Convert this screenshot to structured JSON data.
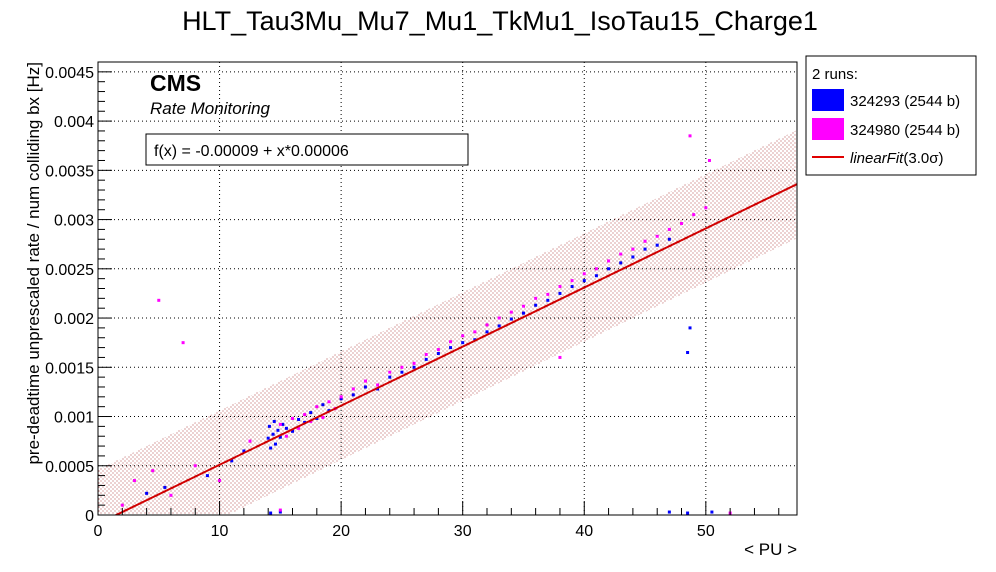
{
  "chart_data": {
    "type": "scatter",
    "title": "HLT_Tau3Mu_Mu7_Mu1_TkMu1_IsoTau15_Charge1",
    "xlabel": "< PU >",
    "ylabel": "pre-deadtime unprescaled rate / num colliding bx [Hz]",
    "xlim": [
      0,
      57.5
    ],
    "ylim": [
      0,
      0.0046
    ],
    "x_ticks": [
      0,
      10,
      20,
      30,
      40,
      50
    ],
    "x_tick_labels": [
      "0",
      "10",
      "20",
      "30",
      "40",
      "50"
    ],
    "y_ticks": [
      0,
      0.0005,
      0.001,
      0.0015,
      0.002,
      0.0025,
      0.003,
      0.0035,
      0.004,
      0.0045
    ],
    "y_tick_labels": [
      "0",
      "0.0005",
      "0.001",
      "0.0015",
      "0.002",
      "0.0025",
      "0.003",
      "0.0035",
      "0.004",
      "0.0045"
    ],
    "grid": true,
    "annotations": {
      "experiment": "CMS",
      "subtitle": "Rate Monitoring",
      "fit_formula": "f(x) = -0.00009 + x*0.00006"
    },
    "legend": {
      "header": "2 runs:",
      "position": "outside-right",
      "entries": [
        {
          "label": "324293 (2544 b)",
          "color": "#0000ff"
        },
        {
          "label": "324980 (2544 b)",
          "color": "#ff00ff"
        },
        {
          "label": "linearFit",
          "label_suffix": "(3.0σ)",
          "color": "#e00000"
        }
      ]
    },
    "fit": {
      "intercept": -9e-05,
      "slope": 6e-05,
      "band_halfwidth": 0.00055,
      "color": "#d00000"
    },
    "series": [
      {
        "name": "324293 (2544 b)",
        "color": "#0000ff",
        "points": [
          {
            "x": 14.0,
            "y": 0.00078
          },
          {
            "x": 14.1,
            "y": 0.0009
          },
          {
            "x": 14.2,
            "y": 0.00068
          },
          {
            "x": 14.4,
            "y": 0.00082
          },
          {
            "x": 14.5,
            "y": 0.00095
          },
          {
            "x": 14.6,
            "y": 0.00072
          },
          {
            "x": 14.8,
            "y": 0.00086
          },
          {
            "x": 15.0,
            "y": 0.00079
          },
          {
            "x": 15.2,
            "y": 0.00092
          },
          {
            "x": 15.5,
            "y": 0.00088
          },
          {
            "x": 16.0,
            "y": 0.00085
          },
          {
            "x": 16.5,
            "y": 0.00097
          },
          {
            "x": 17.0,
            "y": 0.00094
          },
          {
            "x": 17.5,
            "y": 0.00104
          },
          {
            "x": 18.0,
            "y": 0.00098
          },
          {
            "x": 18.5,
            "y": 0.00112
          },
          {
            "x": 19.0,
            "y": 0.00106
          },
          {
            "x": 20.0,
            "y": 0.00118
          },
          {
            "x": 21.0,
            "y": 0.00122
          },
          {
            "x": 22.0,
            "y": 0.0013
          },
          {
            "x": 23.0,
            "y": 0.00128
          },
          {
            "x": 24.0,
            "y": 0.0014
          },
          {
            "x": 25.0,
            "y": 0.00145
          },
          {
            "x": 26.0,
            "y": 0.0015
          },
          {
            "x": 27.0,
            "y": 0.00158
          },
          {
            "x": 28.0,
            "y": 0.00164
          },
          {
            "x": 29.0,
            "y": 0.0017
          },
          {
            "x": 30.0,
            "y": 0.00175
          },
          {
            "x": 31.0,
            "y": 0.00178
          },
          {
            "x": 32.0,
            "y": 0.00186
          },
          {
            "x": 33.0,
            "y": 0.00192
          },
          {
            "x": 34.0,
            "y": 0.00199
          },
          {
            "x": 35.0,
            "y": 0.00205
          },
          {
            "x": 36.0,
            "y": 0.00213
          },
          {
            "x": 37.0,
            "y": 0.00218
          },
          {
            "x": 38.0,
            "y": 0.00225
          },
          {
            "x": 39.0,
            "y": 0.00232
          },
          {
            "x": 40.0,
            "y": 0.00238
          },
          {
            "x": 41.0,
            "y": 0.00243
          },
          {
            "x": 42.0,
            "y": 0.0025
          },
          {
            "x": 43.0,
            "y": 0.00256
          },
          {
            "x": 44.0,
            "y": 0.00262
          },
          {
            "x": 45.0,
            "y": 0.0027
          },
          {
            "x": 46.0,
            "y": 0.00274
          },
          {
            "x": 47.0,
            "y": 0.0028
          },
          {
            "x": 14.2,
            "y": 2e-05
          },
          {
            "x": 15.0,
            "y": 3e-05
          },
          {
            "x": 47.0,
            "y": 3e-05
          },
          {
            "x": 48.5,
            "y": 2e-05
          },
          {
            "x": 50.5,
            "y": 3e-05
          },
          {
            "x": 48.5,
            "y": 0.00165
          },
          {
            "x": 48.7,
            "y": 0.0019
          },
          {
            "x": 4.0,
            "y": 0.00022
          },
          {
            "x": 5.5,
            "y": 0.00028
          },
          {
            "x": 9.0,
            "y": 0.0004
          },
          {
            "x": 11.0,
            "y": 0.00055
          },
          {
            "x": 12.0,
            "y": 0.00065
          }
        ]
      },
      {
        "name": "324980 (2544 b)",
        "color": "#ff00ff",
        "points": [
          {
            "x": 15.0,
            "y": 0.00092
          },
          {
            "x": 15.5,
            "y": 0.0008
          },
          {
            "x": 16.0,
            "y": 0.00098
          },
          {
            "x": 16.5,
            "y": 0.00088
          },
          {
            "x": 17.0,
            "y": 0.00102
          },
          {
            "x": 17.5,
            "y": 0.00095
          },
          {
            "x": 18.0,
            "y": 0.0011
          },
          {
            "x": 18.5,
            "y": 0.00099
          },
          {
            "x": 19.0,
            "y": 0.00115
          },
          {
            "x": 19.5,
            "y": 0.00108
          },
          {
            "x": 20.0,
            "y": 0.0012
          },
          {
            "x": 21.0,
            "y": 0.00128
          },
          {
            "x": 22.0,
            "y": 0.00136
          },
          {
            "x": 23.0,
            "y": 0.00132
          },
          {
            "x": 24.0,
            "y": 0.00145
          },
          {
            "x": 25.0,
            "y": 0.0015
          },
          {
            "x": 26.0,
            "y": 0.00154
          },
          {
            "x": 27.0,
            "y": 0.00163
          },
          {
            "x": 28.0,
            "y": 0.00168
          },
          {
            "x": 29.0,
            "y": 0.00176
          },
          {
            "x": 30.0,
            "y": 0.00182
          },
          {
            "x": 31.0,
            "y": 0.00186
          },
          {
            "x": 32.0,
            "y": 0.00193
          },
          {
            "x": 33.0,
            "y": 0.002
          },
          {
            "x": 34.0,
            "y": 0.00206
          },
          {
            "x": 35.0,
            "y": 0.00212
          },
          {
            "x": 36.0,
            "y": 0.0022
          },
          {
            "x": 37.0,
            "y": 0.00224
          },
          {
            "x": 38.0,
            "y": 0.00232
          },
          {
            "x": 39.0,
            "y": 0.00238
          },
          {
            "x": 40.0,
            "y": 0.00245
          },
          {
            "x": 41.0,
            "y": 0.0025
          },
          {
            "x": 42.0,
            "y": 0.00258
          },
          {
            "x": 43.0,
            "y": 0.00265
          },
          {
            "x": 44.0,
            "y": 0.0027
          },
          {
            "x": 45.0,
            "y": 0.00278
          },
          {
            "x": 46.0,
            "y": 0.00283
          },
          {
            "x": 47.0,
            "y": 0.0029
          },
          {
            "x": 48.0,
            "y": 0.00296
          },
          {
            "x": 49.0,
            "y": 0.00305
          },
          {
            "x": 50.0,
            "y": 0.00312
          },
          {
            "x": 48.7,
            "y": 0.00385
          },
          {
            "x": 50.3,
            "y": 0.0036
          },
          {
            "x": 5.0,
            "y": 0.00218
          },
          {
            "x": 7.0,
            "y": 0.00175
          },
          {
            "x": 38.0,
            "y": 0.0016
          },
          {
            "x": 2.0,
            "y": 0.0001
          },
          {
            "x": 3.0,
            "y": 0.00035
          },
          {
            "x": 4.5,
            "y": 0.00045
          },
          {
            "x": 6.0,
            "y": 0.0002
          },
          {
            "x": 8.0,
            "y": 0.0005
          },
          {
            "x": 10.0,
            "y": 0.00035
          },
          {
            "x": 12.5,
            "y": 0.00075
          },
          {
            "x": 15.0,
            "y": 5e-05
          },
          {
            "x": 52.0,
            "y": 2e-05
          }
        ]
      }
    ]
  }
}
